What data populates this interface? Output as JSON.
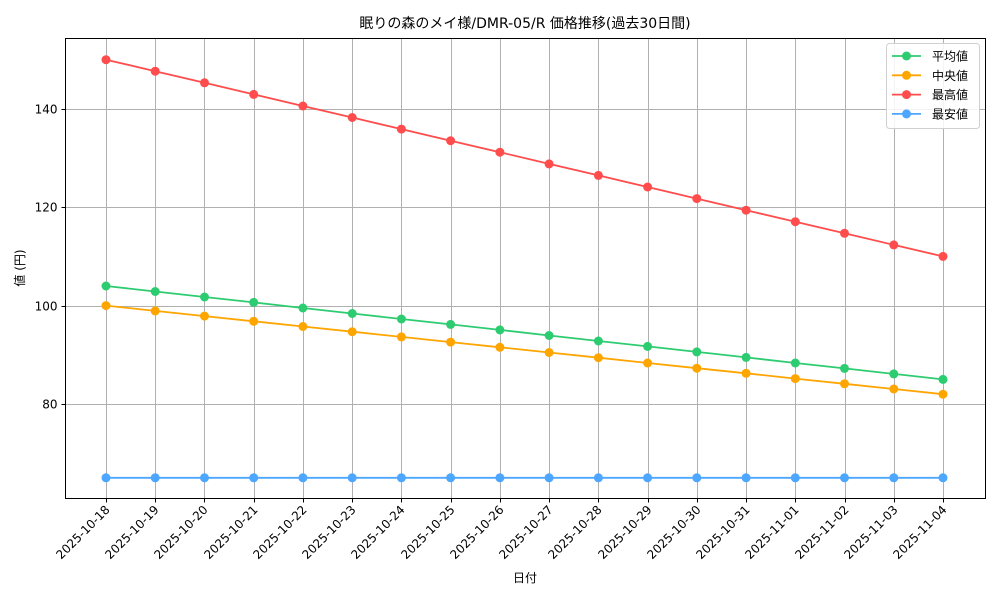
{
  "chart_data": {
    "type": "line",
    "title": "眠りの森のメイ様/DMR-05/R 価格推移(過去30日間)",
    "xlabel": "日付",
    "ylabel": "値 (円)",
    "ylim": [
      60.8,
      154.3
    ],
    "yticks": [
      80,
      100,
      120,
      140
    ],
    "grid": true,
    "legend_position": "upper right",
    "categories": [
      "2025-10-18",
      "2025-10-19",
      "2025-10-20",
      "2025-10-21",
      "2025-10-22",
      "2025-10-23",
      "2025-10-24",
      "2025-10-25",
      "2025-10-26",
      "2025-10-27",
      "2025-10-28",
      "2025-10-29",
      "2025-10-30",
      "2025-10-31",
      "2025-11-01",
      "2025-11-02",
      "2025-11-03",
      "2025-11-04"
    ],
    "series": [
      {
        "name": "平均値",
        "color": "#2ecc71",
        "values": [
          104,
          102.88,
          101.76,
          100.65,
          99.53,
          98.41,
          97.29,
          96.18,
          95.06,
          93.94,
          92.82,
          91.71,
          90.59,
          89.47,
          88.35,
          87.24,
          86.12,
          85
        ]
      },
      {
        "name": "中央値",
        "color": "#ffa500",
        "values": [
          100,
          98.94,
          97.88,
          96.82,
          95.76,
          94.71,
          93.65,
          92.59,
          91.53,
          90.47,
          89.41,
          88.35,
          87.29,
          86.24,
          85.18,
          84.12,
          83.06,
          82
        ]
      },
      {
        "name": "最高値",
        "color": "#ff4d4d",
        "values": [
          150,
          147.65,
          145.29,
          142.94,
          140.59,
          138.24,
          135.88,
          133.53,
          131.18,
          128.82,
          126.47,
          124.12,
          121.76,
          119.41,
          117.06,
          114.71,
          112.35,
          110
        ]
      },
      {
        "name": "最安値",
        "color": "#4da6ff",
        "values": [
          65,
          65,
          65,
          65,
          65,
          65,
          65,
          65,
          65,
          65,
          65,
          65,
          65,
          65,
          65,
          65,
          65,
          65
        ]
      }
    ]
  }
}
